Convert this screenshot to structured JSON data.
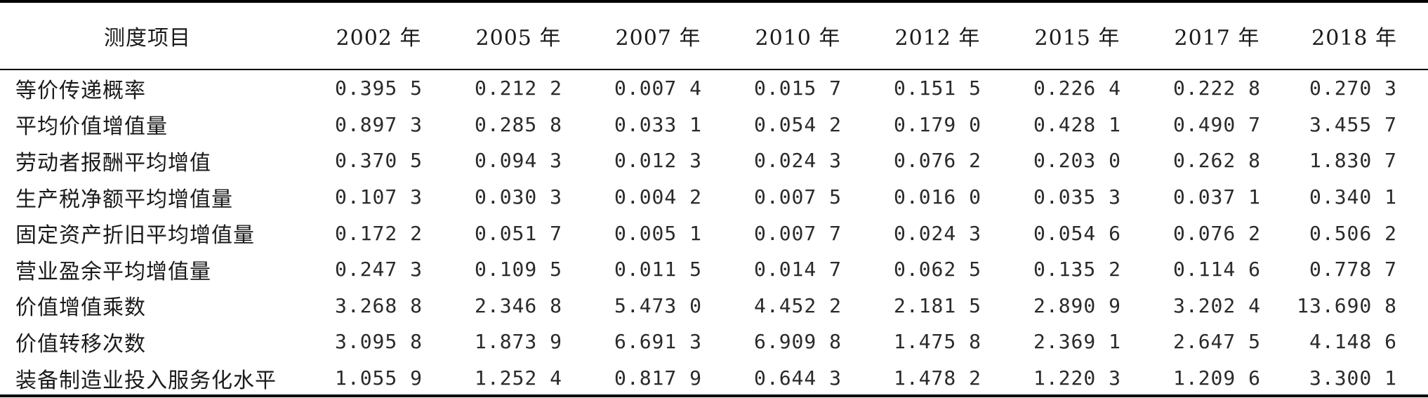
{
  "table": {
    "header": [
      "测度项目",
      "2002 年",
      "2005 年",
      "2007 年",
      "2010 年",
      "2012 年",
      "2015 年",
      "2017 年",
      "2018 年"
    ],
    "rows": [
      {
        "label": "等价传递概率",
        "values": [
          "0.395 5",
          "0.212 2",
          "0.007 4",
          "0.015 7",
          "0.151 5",
          "0.226 4",
          "0.222 8",
          "0.270 3"
        ]
      },
      {
        "label": "平均价值增值量",
        "values": [
          "0.897 3",
          "0.285 8",
          "0.033 1",
          "0.054 2",
          "0.179 0",
          "0.428 1",
          "0.490 7",
          "3.455 7"
        ]
      },
      {
        "label": "劳动者报酬平均增值",
        "values": [
          "0.370 5",
          "0.094 3",
          "0.012 3",
          "0.024 3",
          "0.076 2",
          "0.203 0",
          "0.262 8",
          "1.830 7"
        ]
      },
      {
        "label": "生产税净额平均增值量",
        "values": [
          "0.107 3",
          "0.030 3",
          "0.004 2",
          "0.007 5",
          "0.016 0",
          "0.035 3",
          "0.037 1",
          "0.340 1"
        ]
      },
      {
        "label": "固定资产折旧平均增值量",
        "values": [
          "0.172 2",
          "0.051 7",
          "0.005 1",
          "0.007 7",
          "0.024 3",
          "0.054 6",
          "0.076 2",
          "0.506 2"
        ]
      },
      {
        "label": "营业盈余平均增值量",
        "values": [
          "0.247 3",
          "0.109 5",
          "0.011 5",
          "0.014 7",
          "0.062 5",
          "0.135 2",
          "0.114 6",
          "0.778 7"
        ]
      },
      {
        "label": "价值增值乘数",
        "values": [
          "3.268 8",
          "2.346 8",
          "5.473 0",
          "4.452 2",
          "2.181 5",
          "2.890 9",
          "3.202 4",
          "13.690 8"
        ]
      },
      {
        "label": "价值转移次数",
        "values": [
          "3.095 8",
          "1.873 9",
          "6.691 3",
          "6.909 8",
          "1.475 8",
          "2.369 1",
          "2.647 5",
          "4.148 6"
        ]
      },
      {
        "label": "装备制造业投入服务化水平",
        "values": [
          "1.055 9",
          "1.252 4",
          "0.817 9",
          "0.644 3",
          "1.478 2",
          "1.220 3",
          "1.209 6",
          "3.300 1"
        ]
      }
    ]
  }
}
